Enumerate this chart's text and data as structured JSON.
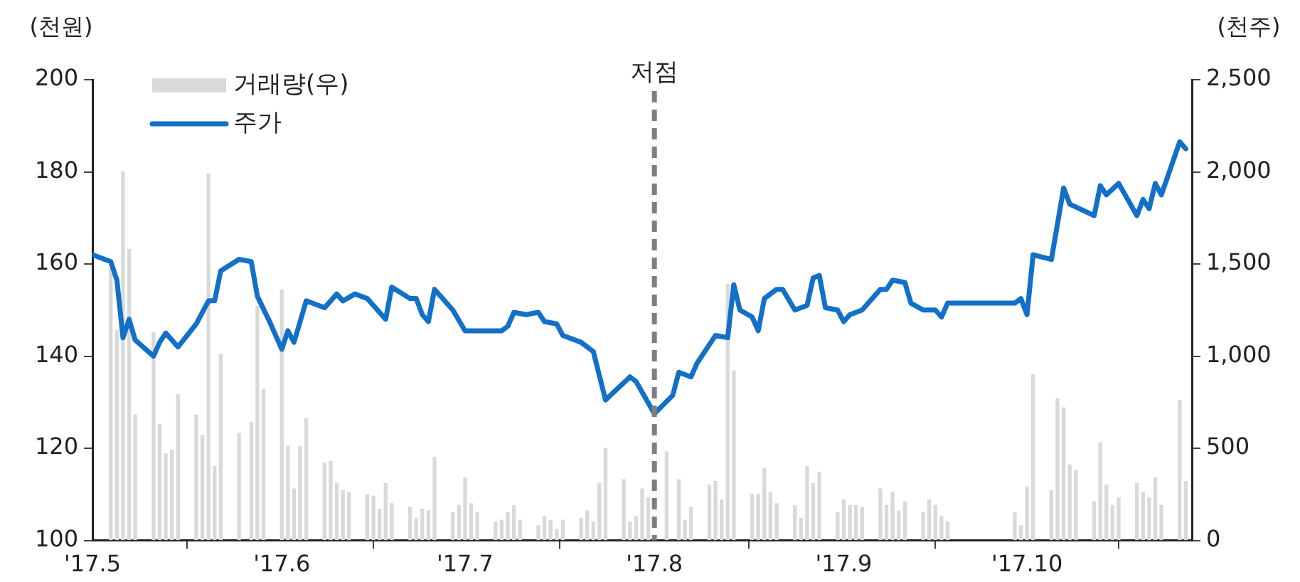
{
  "chart_data": {
    "type": "line",
    "ylabel": "(천원)",
    "y2label": "(천주)",
    "xlim": [
      "2017-05-01",
      "2017-10-28"
    ],
    "xticks": [
      {
        "value": "2017-05-01",
        "label": "'17.5"
      },
      {
        "value": "2017-06-01",
        "label": "'17.6"
      },
      {
        "value": "2017-07-01",
        "label": "'17.7"
      },
      {
        "value": "2017-08-01",
        "label": "'17.8"
      },
      {
        "value": "2017-09-01",
        "label": "'17.9"
      },
      {
        "value": "2017-10-01",
        "label": "'17.10"
      }
    ],
    "ylim": [
      100,
      200
    ],
    "yticks": [
      100,
      120,
      140,
      160,
      180,
      200
    ],
    "y2lim": [
      0,
      2500
    ],
    "y2ticks": [
      0,
      500,
      {
        "value": 1000,
        "label": "1,000"
      },
      {
        "value": 1500,
        "label": "1,500"
      },
      {
        "value": 2000,
        "label": "2,000"
      },
      {
        "value": 2500,
        "label": "2,500"
      }
    ],
    "grid": false,
    "legend": "top left",
    "ref_lines": [
      {
        "axis": "x",
        "value": "2017-08-01",
        "label": "저점",
        "color": "#7f7f7f",
        "line_style": "dashed"
      }
    ],
    "series": [
      {
        "name": "거래량(우)",
        "type": "bar",
        "axis": "y2",
        "color": "#d9d9d9",
        "x": [
          "2017-05-04",
          "2017-05-05",
          "2017-05-06",
          "2017-05-07",
          "2017-05-08",
          "2017-05-11",
          "2017-05-12",
          "2017-05-13",
          "2017-05-14",
          "2017-05-15",
          "2017-05-18",
          "2017-05-19",
          "2017-05-20",
          "2017-05-21",
          "2017-05-22",
          "2017-05-25",
          "2017-05-27",
          "2017-05-28",
          "2017-05-29",
          "2017-06-01",
          "2017-06-02",
          "2017-06-03",
          "2017-06-04",
          "2017-06-05",
          "2017-06-08",
          "2017-06-09",
          "2017-06-10",
          "2017-06-11",
          "2017-06-12",
          "2017-06-15",
          "2017-06-16",
          "2017-06-17",
          "2017-06-18",
          "2017-06-19",
          "2017-06-22",
          "2017-06-23",
          "2017-06-24",
          "2017-06-25",
          "2017-06-26",
          "2017-06-29",
          "2017-06-30",
          "2017-07-01",
          "2017-07-02",
          "2017-07-03",
          "2017-07-06",
          "2017-07-07",
          "2017-07-08",
          "2017-07-09",
          "2017-07-10",
          "2017-07-13",
          "2017-07-14",
          "2017-07-15",
          "2017-07-16",
          "2017-07-17",
          "2017-07-20",
          "2017-07-21",
          "2017-07-22",
          "2017-07-23",
          "2017-07-24",
          "2017-07-27",
          "2017-07-28",
          "2017-07-29",
          "2017-07-30",
          "2017-07-31",
          "2017-08-03",
          "2017-08-05",
          "2017-08-06",
          "2017-08-07",
          "2017-08-10",
          "2017-08-11",
          "2017-08-12",
          "2017-08-13",
          "2017-08-14",
          "2017-08-17",
          "2017-08-18",
          "2017-08-19",
          "2017-08-20",
          "2017-08-21",
          "2017-08-24",
          "2017-08-25",
          "2017-08-26",
          "2017-08-27",
          "2017-08-28",
          "2017-08-31",
          "2017-09-01",
          "2017-09-02",
          "2017-09-03",
          "2017-09-04",
          "2017-09-07",
          "2017-09-08",
          "2017-09-09",
          "2017-09-10",
          "2017-09-11",
          "2017-09-14",
          "2017-09-15",
          "2017-09-16",
          "2017-09-17",
          "2017-09-18",
          "2017-09-29",
          "2017-09-30",
          "2017-10-01",
          "2017-10-02",
          "2017-10-05",
          "2017-10-06",
          "2017-10-07",
          "2017-10-08",
          "2017-10-09",
          "2017-10-12",
          "2017-10-13",
          "2017-10-14",
          "2017-10-15",
          "2017-10-16",
          "2017-10-19",
          "2017-10-20",
          "2017-10-21",
          "2017-10-22",
          "2017-10-23",
          "2017-10-26",
          "2017-10-27"
        ],
        "values": [
          1470,
          1140,
          2000,
          1580,
          680,
          1130,
          630,
          470,
          490,
          790,
          680,
          570,
          1990,
          400,
          1010,
          580,
          640,
          1270,
          820,
          1360,
          510,
          280,
          510,
          660,
          420,
          430,
          310,
          270,
          260,
          250,
          240,
          170,
          310,
          200,
          180,
          120,
          170,
          160,
          450,
          150,
          190,
          340,
          200,
          150,
          100,
          110,
          150,
          190,
          110,
          80,
          130,
          110,
          60,
          110,
          120,
          160,
          100,
          310,
          500,
          330,
          100,
          130,
          280,
          230,
          480,
          330,
          110,
          180,
          300,
          320,
          220,
          1390,
          920,
          250,
          250,
          390,
          260,
          200,
          190,
          120,
          400,
          310,
          370,
          150,
          220,
          190,
          190,
          180,
          280,
          190,
          260,
          160,
          210,
          150,
          220,
          190,
          130,
          100,
          150,
          80,
          290,
          900,
          270,
          770,
          720,
          410,
          380,
          210,
          530,
          300,
          190,
          230,
          310,
          260,
          230,
          340,
          190,
          760,
          320
        ]
      },
      {
        "name": "주가",
        "color": "#1270c8",
        "x": [
          "2017-05-01",
          "2017-05-04",
          "2017-05-05",
          "2017-05-06",
          "2017-05-07",
          "2017-05-08",
          "2017-05-11",
          "2017-05-12",
          "2017-05-13",
          "2017-05-15",
          "2017-05-18",
          "2017-05-20",
          "2017-05-21",
          "2017-05-22",
          "2017-05-25",
          "2017-05-27",
          "2017-05-28",
          "2017-05-30",
          "2017-06-01",
          "2017-06-02",
          "2017-06-03",
          "2017-06-05",
          "2017-06-08",
          "2017-06-10",
          "2017-06-11",
          "2017-06-13",
          "2017-06-15",
          "2017-06-17",
          "2017-06-18",
          "2017-06-19",
          "2017-06-22",
          "2017-06-23",
          "2017-06-24",
          "2017-06-25",
          "2017-06-26",
          "2017-06-29",
          "2017-07-01",
          "2017-07-04",
          "2017-07-07",
          "2017-07-08",
          "2017-07-09",
          "2017-07-11",
          "2017-07-13",
          "2017-07-14",
          "2017-07-16",
          "2017-07-17",
          "2017-07-20",
          "2017-07-22",
          "2017-07-24",
          "2017-07-28",
          "2017-07-29",
          "2017-08-01",
          "2017-08-04",
          "2017-08-05",
          "2017-08-07",
          "2017-08-08",
          "2017-08-10",
          "2017-08-11",
          "2017-08-13",
          "2017-08-14",
          "2017-08-15",
          "2017-08-17",
          "2017-08-18",
          "2017-08-19",
          "2017-08-21",
          "2017-08-22",
          "2017-08-24",
          "2017-08-26",
          "2017-08-27",
          "2017-08-28",
          "2017-08-29",
          "2017-08-31",
          "2017-09-01",
          "2017-09-02",
          "2017-09-04",
          "2017-09-07",
          "2017-09-08",
          "2017-09-09",
          "2017-09-11",
          "2017-09-12",
          "2017-09-14",
          "2017-09-16",
          "2017-09-17",
          "2017-09-18",
          "2017-09-29",
          "2017-09-30",
          "2017-10-01",
          "2017-10-02",
          "2017-10-05",
          "2017-10-07",
          "2017-10-08",
          "2017-10-12",
          "2017-10-13",
          "2017-10-14",
          "2017-10-16",
          "2017-10-19",
          "2017-10-20",
          "2017-10-21",
          "2017-10-22",
          "2017-10-23",
          "2017-10-26",
          "2017-10-27"
        ],
        "values": [
          162,
          160.5,
          156.5,
          144,
          148,
          143.5,
          140,
          143,
          145,
          142,
          147,
          152,
          152,
          158.5,
          161,
          160.5,
          153,
          147.5,
          141.5,
          145.5,
          143,
          152,
          150.5,
          153.5,
          152,
          153.5,
          152.5,
          149.5,
          148,
          155,
          152.5,
          152.5,
          149,
          147.5,
          154.5,
          150,
          145.5,
          145.5,
          145.5,
          146.5,
          149.5,
          149,
          149.5,
          147.5,
          147,
          144.5,
          143,
          141,
          130.5,
          135.5,
          134.5,
          127.5,
          131.5,
          136.5,
          135.5,
          138.5,
          142.5,
          144.5,
          144,
          155.5,
          150,
          148.5,
          145.5,
          152.5,
          154.5,
          154.5,
          150,
          151,
          157,
          157.5,
          150.5,
          150,
          147.5,
          149,
          150,
          154.5,
          154.5,
          156.5,
          156,
          151.5,
          150,
          150,
          148.5,
          151.5,
          151.5,
          152.5,
          149,
          162,
          161,
          176.5,
          173,
          170.5,
          177,
          175,
          177.5,
          170.5,
          174,
          172,
          177.5,
          175,
          186.5,
          185
        ]
      }
    ]
  }
}
